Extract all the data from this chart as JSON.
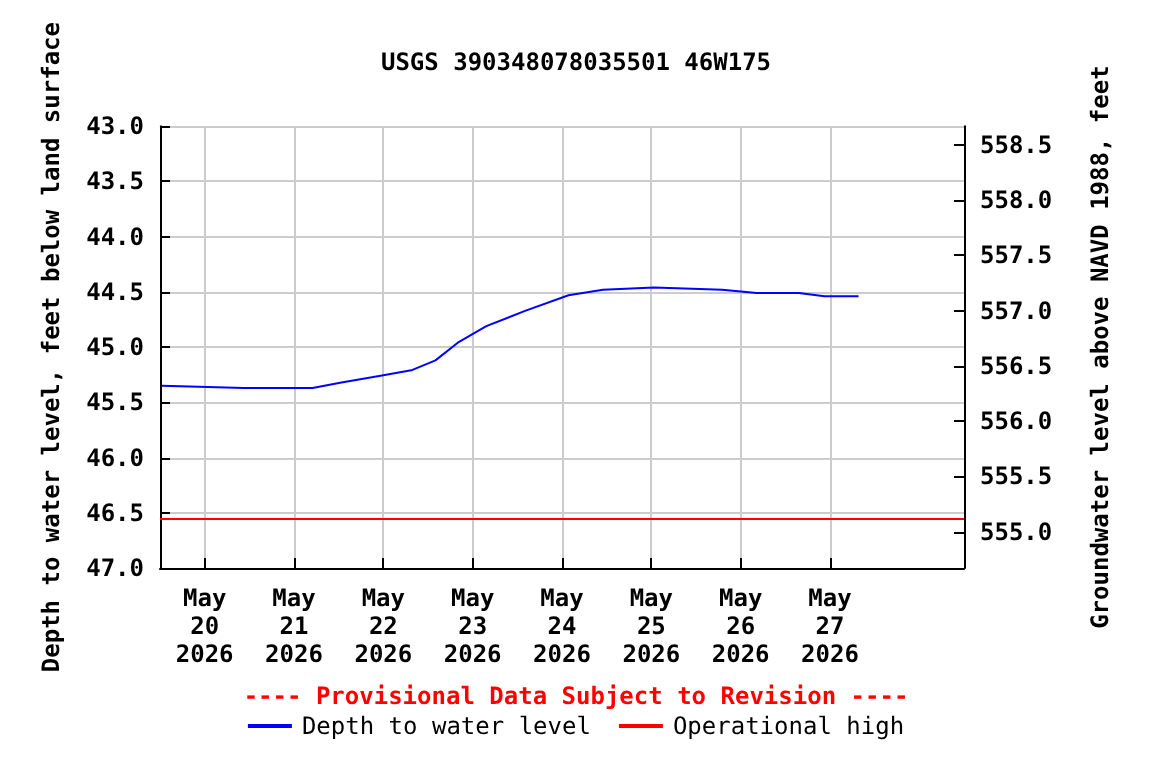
{
  "chart_data": {
    "type": "line",
    "title": "USGS 390348078035501 46W175",
    "ylabel": "Depth to water level, feet below land surface",
    "y2label": "Groundwater level above NAVD 1988, feet",
    "annotations": [
      "---- Provisional Data Subject to Revision ----"
    ],
    "xlim": [
      "2026-05-19T12:00",
      "2026-05-28T12:00"
    ],
    "xticks": [
      {
        "value": "2026-05-20",
        "label": "May\n20\n2026"
      },
      {
        "value": "2026-05-21",
        "label": "May\n21\n2026"
      },
      {
        "value": "2026-05-22",
        "label": "May\n22\n2026"
      },
      {
        "value": "2026-05-23",
        "label": "May\n23\n2026"
      },
      {
        "value": "2026-05-24",
        "label": "May\n24\n2026"
      },
      {
        "value": "2026-05-25",
        "label": "May\n25\n2026"
      },
      {
        "value": "2026-05-26",
        "label": "May\n26\n2026"
      },
      {
        "value": "2026-05-27",
        "label": "May\n27\n2026"
      }
    ],
    "ylim": [
      47,
      43
    ],
    "yticks": [
      {
        "value": 43,
        "label": "43.0"
      },
      43.5,
      {
        "value": 44,
        "label": "44.0"
      },
      44.5,
      {
        "value": 45,
        "label": "45.0"
      },
      45.5,
      {
        "value": 46,
        "label": "46.0"
      },
      46.5,
      {
        "value": 47,
        "label": "47.0"
      }
    ],
    "y2lim": [
      554.67,
      558.67
    ],
    "y2ticks": [
      {
        "value": 555,
        "label": "555.0"
      },
      555.5,
      {
        "value": 556,
        "label": "556.0"
      },
      556.5,
      {
        "value": 557,
        "label": "557.0"
      },
      557.5,
      {
        "value": 558,
        "label": "558.0"
      },
      558.5
    ],
    "grid": true,
    "legend": "bottom",
    "marker": "none",
    "line_style": "solid",
    "ref_lines": [
      {
        "axis": "y",
        "value": 46.56,
        "label": "Operational high",
        "color": "#ff0000"
      }
    ],
    "series": [
      {
        "name": "Depth to water level",
        "color": "#0000ff",
        "x": [
          "2026-05-19T12:30",
          "2026-05-20T10:30",
          "2026-05-21T05:00",
          "2026-05-21T12:45",
          "2026-05-21T23:15",
          "2026-05-22T07:30",
          "2026-05-22T14:00",
          "2026-05-22T20:00",
          "2026-05-23T03:40",
          "2026-05-23T14:15",
          "2026-05-24T01:45",
          "2026-05-24T11:00",
          "2026-05-25T00:45",
          "2026-05-25T19:00",
          "2026-05-26T04:20",
          "2026-05-26T15:40",
          "2026-05-26T22:30",
          "2026-05-27T07:40"
        ],
        "values": [
          45.35,
          45.37,
          45.37,
          45.32,
          45.26,
          45.21,
          45.12,
          44.96,
          44.81,
          44.67,
          44.53,
          44.48,
          44.46,
          44.48,
          44.51,
          44.51,
          44.54,
          44.54
        ]
      }
    ]
  }
}
